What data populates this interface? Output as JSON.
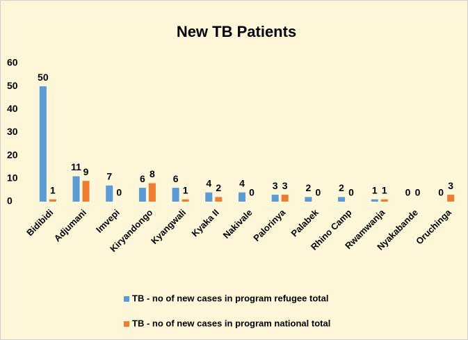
{
  "chart_data": {
    "type": "bar",
    "title": "New TB Patients",
    "categories": [
      "Bidibidi",
      "Adjumani",
      "Imvepi",
      "Kiryandongo",
      "Kyangwali",
      "Kyaka II",
      "Nakivale",
      "Palorinya",
      "Palabek",
      "Rhino Camp",
      "Rwamwanja",
      "Nyakabande",
      "Oruchinga"
    ],
    "series": [
      {
        "name": "TB - no of new cases in program refugee total",
        "color": "#5b9bd5",
        "values": [
          50,
          11,
          7,
          6,
          6,
          4,
          4,
          3,
          2,
          2,
          1,
          0,
          0
        ]
      },
      {
        "name": "TB - no of new cases in program national total",
        "color": "#ed7d31",
        "values": [
          1,
          9,
          0,
          8,
          1,
          2,
          0,
          3,
          0,
          0,
          1,
          0,
          3
        ]
      }
    ],
    "ylim": [
      0,
      60
    ],
    "yticks": [
      0,
      10,
      20,
      30,
      40,
      50,
      60
    ],
    "grid": false,
    "legend": "bottom"
  }
}
